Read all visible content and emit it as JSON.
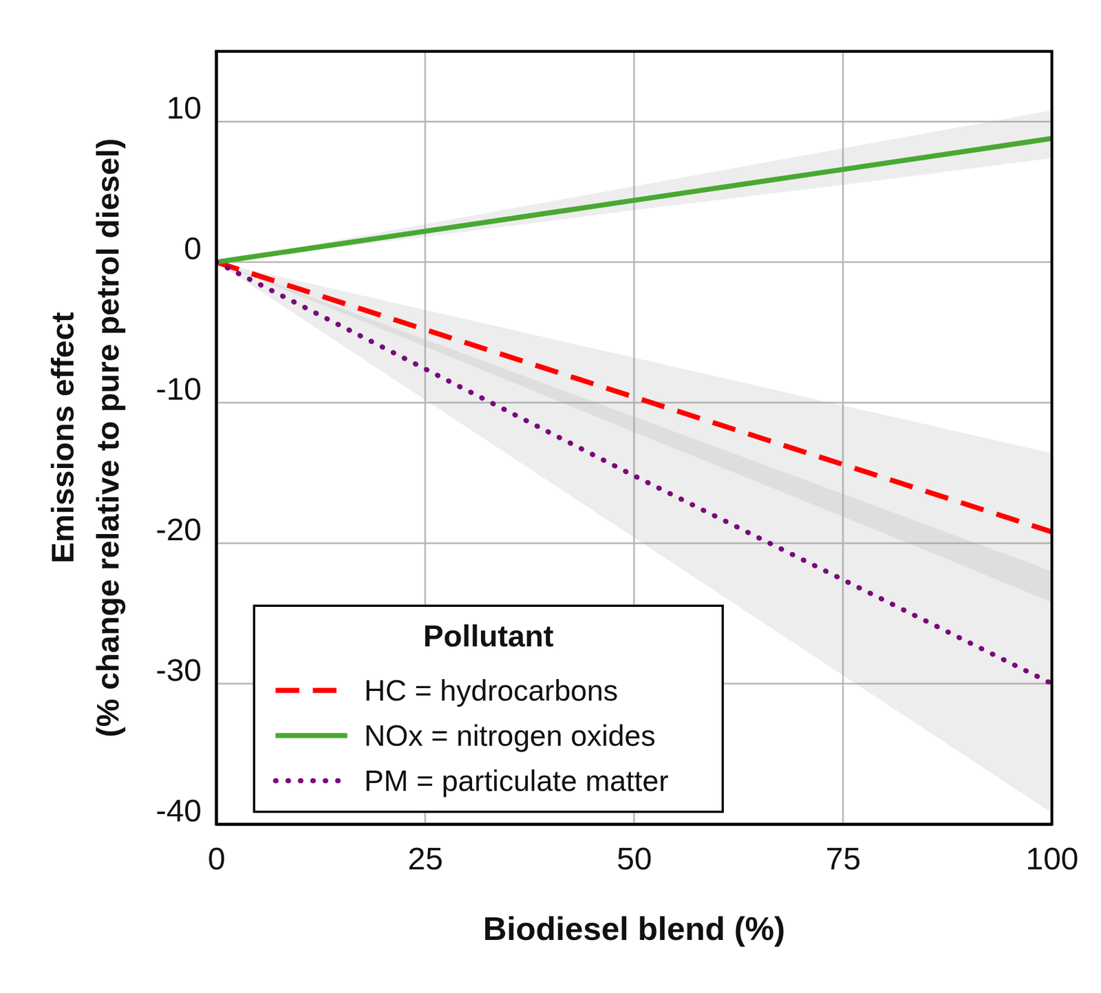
{
  "chart_data": {
    "type": "line",
    "x_label": "Biodiesel blend (%)",
    "y_label": [
      "Emissions effect",
      "(% change relative to pure petrol diesel)"
    ],
    "legend_title": "Pollutant",
    "x": [
      0,
      25,
      50,
      75,
      100
    ],
    "series": [
      {
        "name": "HC = hydrocarbons",
        "color": "#ff0000",
        "line_style": "dashed",
        "values": [
          0,
          -4.8,
          -9.6,
          -14.4,
          -19.2
        ],
        "ci_lower": [
          0,
          -6.0,
          -12.1,
          -18.1,
          -24.2
        ],
        "ci_upper": [
          0,
          -3.4,
          -6.8,
          -10.2,
          -13.6
        ]
      },
      {
        "name": "NOx = nitrogen oxides",
        "color": "#4aa832",
        "line_style": "solid",
        "values": [
          0,
          2.2,
          4.4,
          6.6,
          8.8
        ],
        "ci_lower": [
          0,
          1.8,
          3.7,
          5.5,
          7.4
        ],
        "ci_upper": [
          0,
          2.7,
          5.4,
          8.1,
          10.8
        ]
      },
      {
        "name": "PM = particulate matter",
        "color": "#7a0a7a",
        "line_style": "dotted",
        "values": [
          0,
          -7.6,
          -15.2,
          -22.6,
          -30.0
        ],
        "ci_lower": [
          0,
          -9.8,
          -19.6,
          -29.4,
          -39.2
        ],
        "ci_upper": [
          0,
          -5.5,
          -11.0,
          -16.5,
          -22.0
        ]
      }
    ],
    "xlim": [
      0,
      100
    ],
    "xticks": [
      0,
      25,
      50,
      75,
      100
    ],
    "ylim": [
      -40,
      15
    ],
    "yticks": [
      -40,
      -30,
      -20,
      -10,
      0,
      10
    ],
    "grid": true,
    "legend": "lower left"
  }
}
